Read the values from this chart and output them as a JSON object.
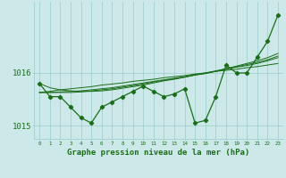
{
  "title": "Graphe pression niveau de la mer (hPa)",
  "x": [
    0,
    1,
    2,
    3,
    4,
    5,
    6,
    7,
    8,
    9,
    10,
    11,
    12,
    13,
    14,
    15,
    16,
    17,
    18,
    19,
    20,
    21,
    22,
    23
  ],
  "y_main": [
    1015.8,
    1015.55,
    1015.55,
    1015.35,
    1015.15,
    1015.05,
    1015.35,
    1015.45,
    1015.55,
    1015.65,
    1015.75,
    1015.65,
    1015.55,
    1015.6,
    1015.7,
    1015.05,
    1015.1,
    1015.55,
    1016.15,
    1016.0,
    1016.0,
    1016.3,
    1016.6,
    1017.1
  ],
  "y_linear": [
    1015.63,
    1015.65,
    1015.68,
    1015.7,
    1015.72,
    1015.74,
    1015.77,
    1015.79,
    1015.81,
    1015.84,
    1015.86,
    1015.88,
    1015.91,
    1015.93,
    1015.95,
    1015.98,
    1016.0,
    1016.03,
    1016.05,
    1016.07,
    1016.1,
    1016.12,
    1016.15,
    1016.18
  ],
  "y_smooth_upper": [
    1015.8,
    1015.72,
    1015.68,
    1015.66,
    1015.65,
    1015.65,
    1015.66,
    1015.68,
    1015.71,
    1015.74,
    1015.77,
    1015.81,
    1015.85,
    1015.88,
    1015.92,
    1015.96,
    1015.99,
    1016.03,
    1016.08,
    1016.13,
    1016.18,
    1016.23,
    1016.29,
    1016.37
  ],
  "y_smooth_mid1": [
    1015.63,
    1015.63,
    1015.64,
    1015.65,
    1015.66,
    1015.68,
    1015.7,
    1015.72,
    1015.75,
    1015.78,
    1015.81,
    1015.84,
    1015.87,
    1015.9,
    1015.93,
    1015.97,
    1016.0,
    1016.04,
    1016.08,
    1016.12,
    1016.16,
    1016.2,
    1016.25,
    1016.32
  ],
  "y_smooth_mid2": [
    1015.63,
    1015.63,
    1015.63,
    1015.63,
    1015.64,
    1015.66,
    1015.68,
    1015.7,
    1015.73,
    1015.76,
    1015.79,
    1015.83,
    1015.86,
    1015.89,
    1015.92,
    1015.96,
    1015.99,
    1016.03,
    1016.07,
    1016.11,
    1016.14,
    1016.18,
    1016.23,
    1016.29
  ],
  "ylim": [
    1014.75,
    1017.35
  ],
  "yticks": [
    1015.0,
    1016.0
  ],
  "xlim": [
    -0.5,
    23.5
  ],
  "bg_color": "#cce8e8",
  "line_color": "#1a6e1a",
  "grid_color": "#99cccc",
  "figsize": [
    3.2,
    2.0
  ],
  "dpi": 100
}
